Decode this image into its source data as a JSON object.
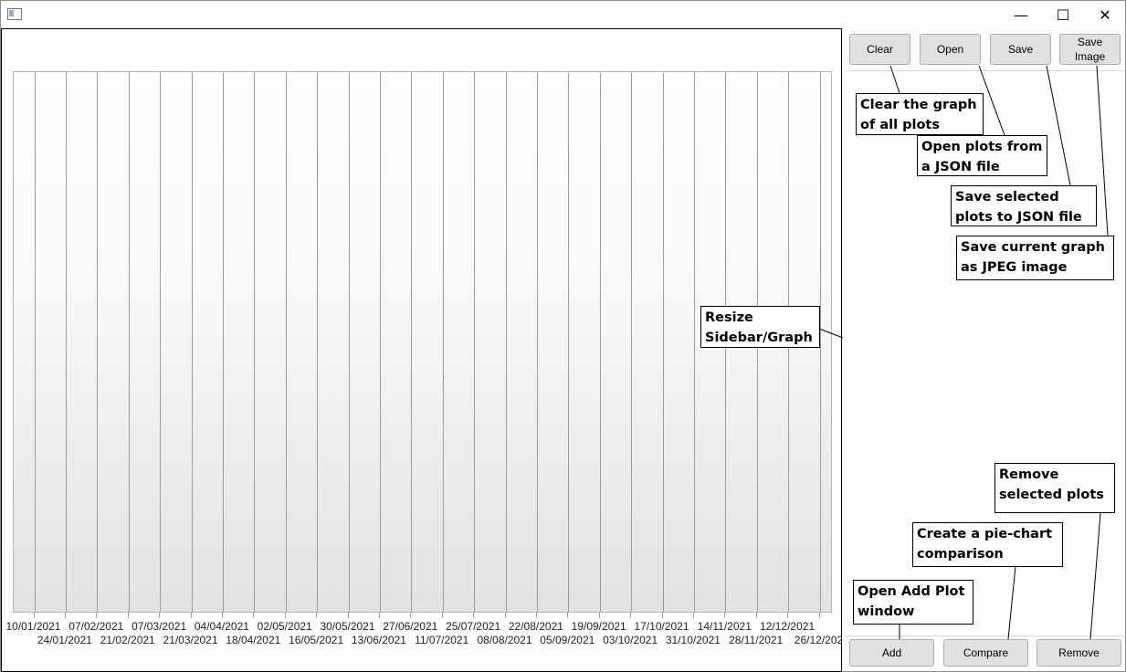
{
  "window": {
    "controls": {
      "minimize": "—",
      "maximize": "☐",
      "close": "✕"
    }
  },
  "graph": {
    "x_labels_top": [
      "10/01/2021",
      "07/02/2021",
      "07/03/2021",
      "04/04/2021",
      "02/05/2021",
      "30/05/2021",
      "27/06/2021",
      "25/07/2021",
      "22/08/2021",
      "19/09/2021",
      "17/10/2021",
      "14/11/2021",
      "12/12/2021"
    ],
    "x_labels_bottom": [
      "24/01/2021",
      "21/02/2021",
      "21/03/2021",
      "18/04/2021",
      "16/05/2021",
      "13/06/2021",
      "11/07/2021",
      "08/08/2021",
      "05/09/2021",
      "03/10/2021",
      "31/10/2021",
      "28/11/2021",
      "26/12/202"
    ]
  },
  "sidebar": {
    "top_buttons": {
      "clear": "Clear",
      "open": "Open",
      "save": "Save",
      "save_image": "Save Image"
    },
    "bottom_buttons": {
      "add": "Add",
      "compare": "Compare",
      "remove": "Remove"
    }
  },
  "callouts": {
    "clear": "Clear the graph of all plots",
    "open": "Open plots from a JSON file",
    "save": "Save selected plots to JSON file",
    "save_image": "Save current graph as JPEG image",
    "resize": "Resize Sidebar/Graph",
    "remove": "Remove selected plots",
    "compare": "Create a pie-chart comparison",
    "add": "Open Add Plot window"
  }
}
